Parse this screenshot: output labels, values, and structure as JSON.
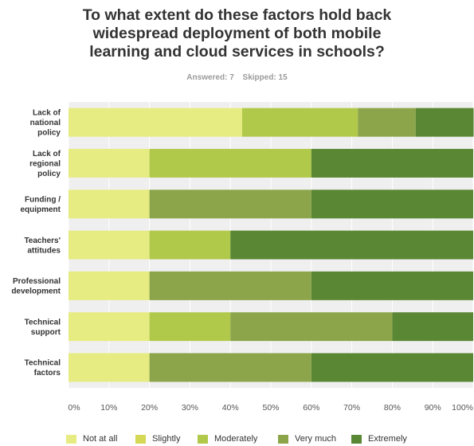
{
  "chart_data": {
    "type": "bar",
    "orientation": "horizontal",
    "stacked": true,
    "title_lines": [
      "To what extent do these factors hold back",
      "widespread deployment of both mobile",
      "learning and cloud services in schools?"
    ],
    "answered": "Answered: 7",
    "skipped": "Skipped: 15",
    "categories": [
      [
        "Lack of",
        "national",
        "policy"
      ],
      [
        "Lack of",
        "regional",
        "policy"
      ],
      [
        "Funding /",
        "equipment"
      ],
      [
        "Teachers'",
        "attitudes"
      ],
      [
        "Professional",
        "development"
      ],
      [
        "Technical",
        "support"
      ],
      [
        "Technical",
        "factors"
      ]
    ],
    "series": [
      {
        "name": "Not at all",
        "color": "#e6ec82",
        "values": [
          42.9,
          20,
          20,
          20,
          20,
          20,
          20
        ]
      },
      {
        "name": "Slightly",
        "color": "#d4d855",
        "values": [
          0,
          0,
          0,
          0,
          0,
          0,
          0
        ]
      },
      {
        "name": "Moderately",
        "color": "#b1c94a",
        "values": [
          28.6,
          40,
          0,
          20,
          0,
          20,
          0
        ]
      },
      {
        "name": "Very much",
        "color": "#8ca54a",
        "values": [
          14.3,
          0,
          40,
          0,
          40,
          40,
          40
        ]
      },
      {
        "name": "Extremely",
        "color": "#5a8733",
        "values": [
          14.3,
          40,
          40,
          60,
          40,
          20,
          40
        ]
      }
    ],
    "xlim": [
      0,
      100
    ],
    "xticks": [
      "0%",
      "10%",
      "20%",
      "30%",
      "40%",
      "50%",
      "60%",
      "70%",
      "80%",
      "90%",
      "100%"
    ],
    "grid": true,
    "legend_position": "bottom"
  }
}
